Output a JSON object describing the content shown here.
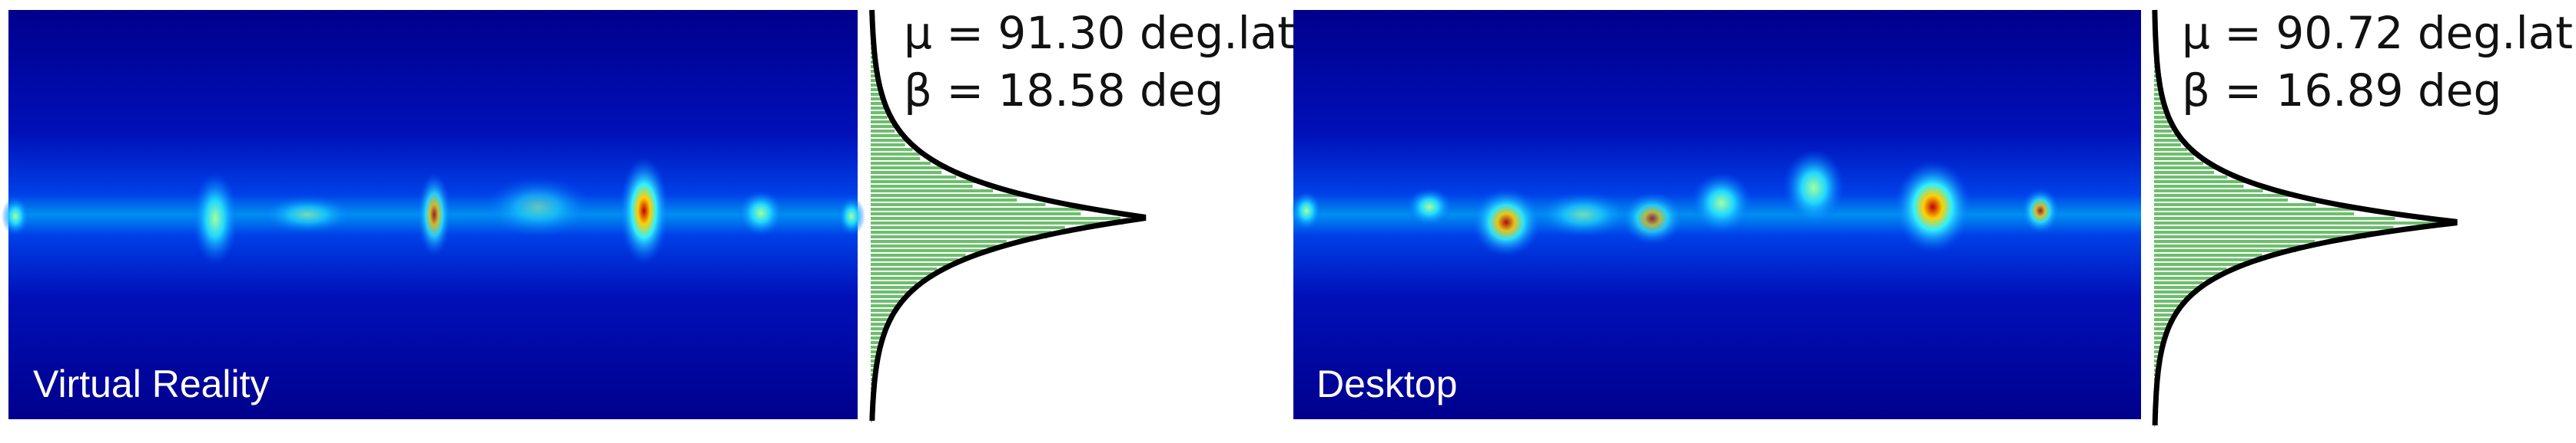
{
  "panels": [
    {
      "label": "Virtual Reality",
      "mu": "μ = 91.30 deg.lat",
      "beta": "β = 18.58 deg"
    },
    {
      "label": "Desktop",
      "mu": "μ = 90.72 deg.lat",
      "beta": "β = 16.89 deg"
    }
  ]
}
